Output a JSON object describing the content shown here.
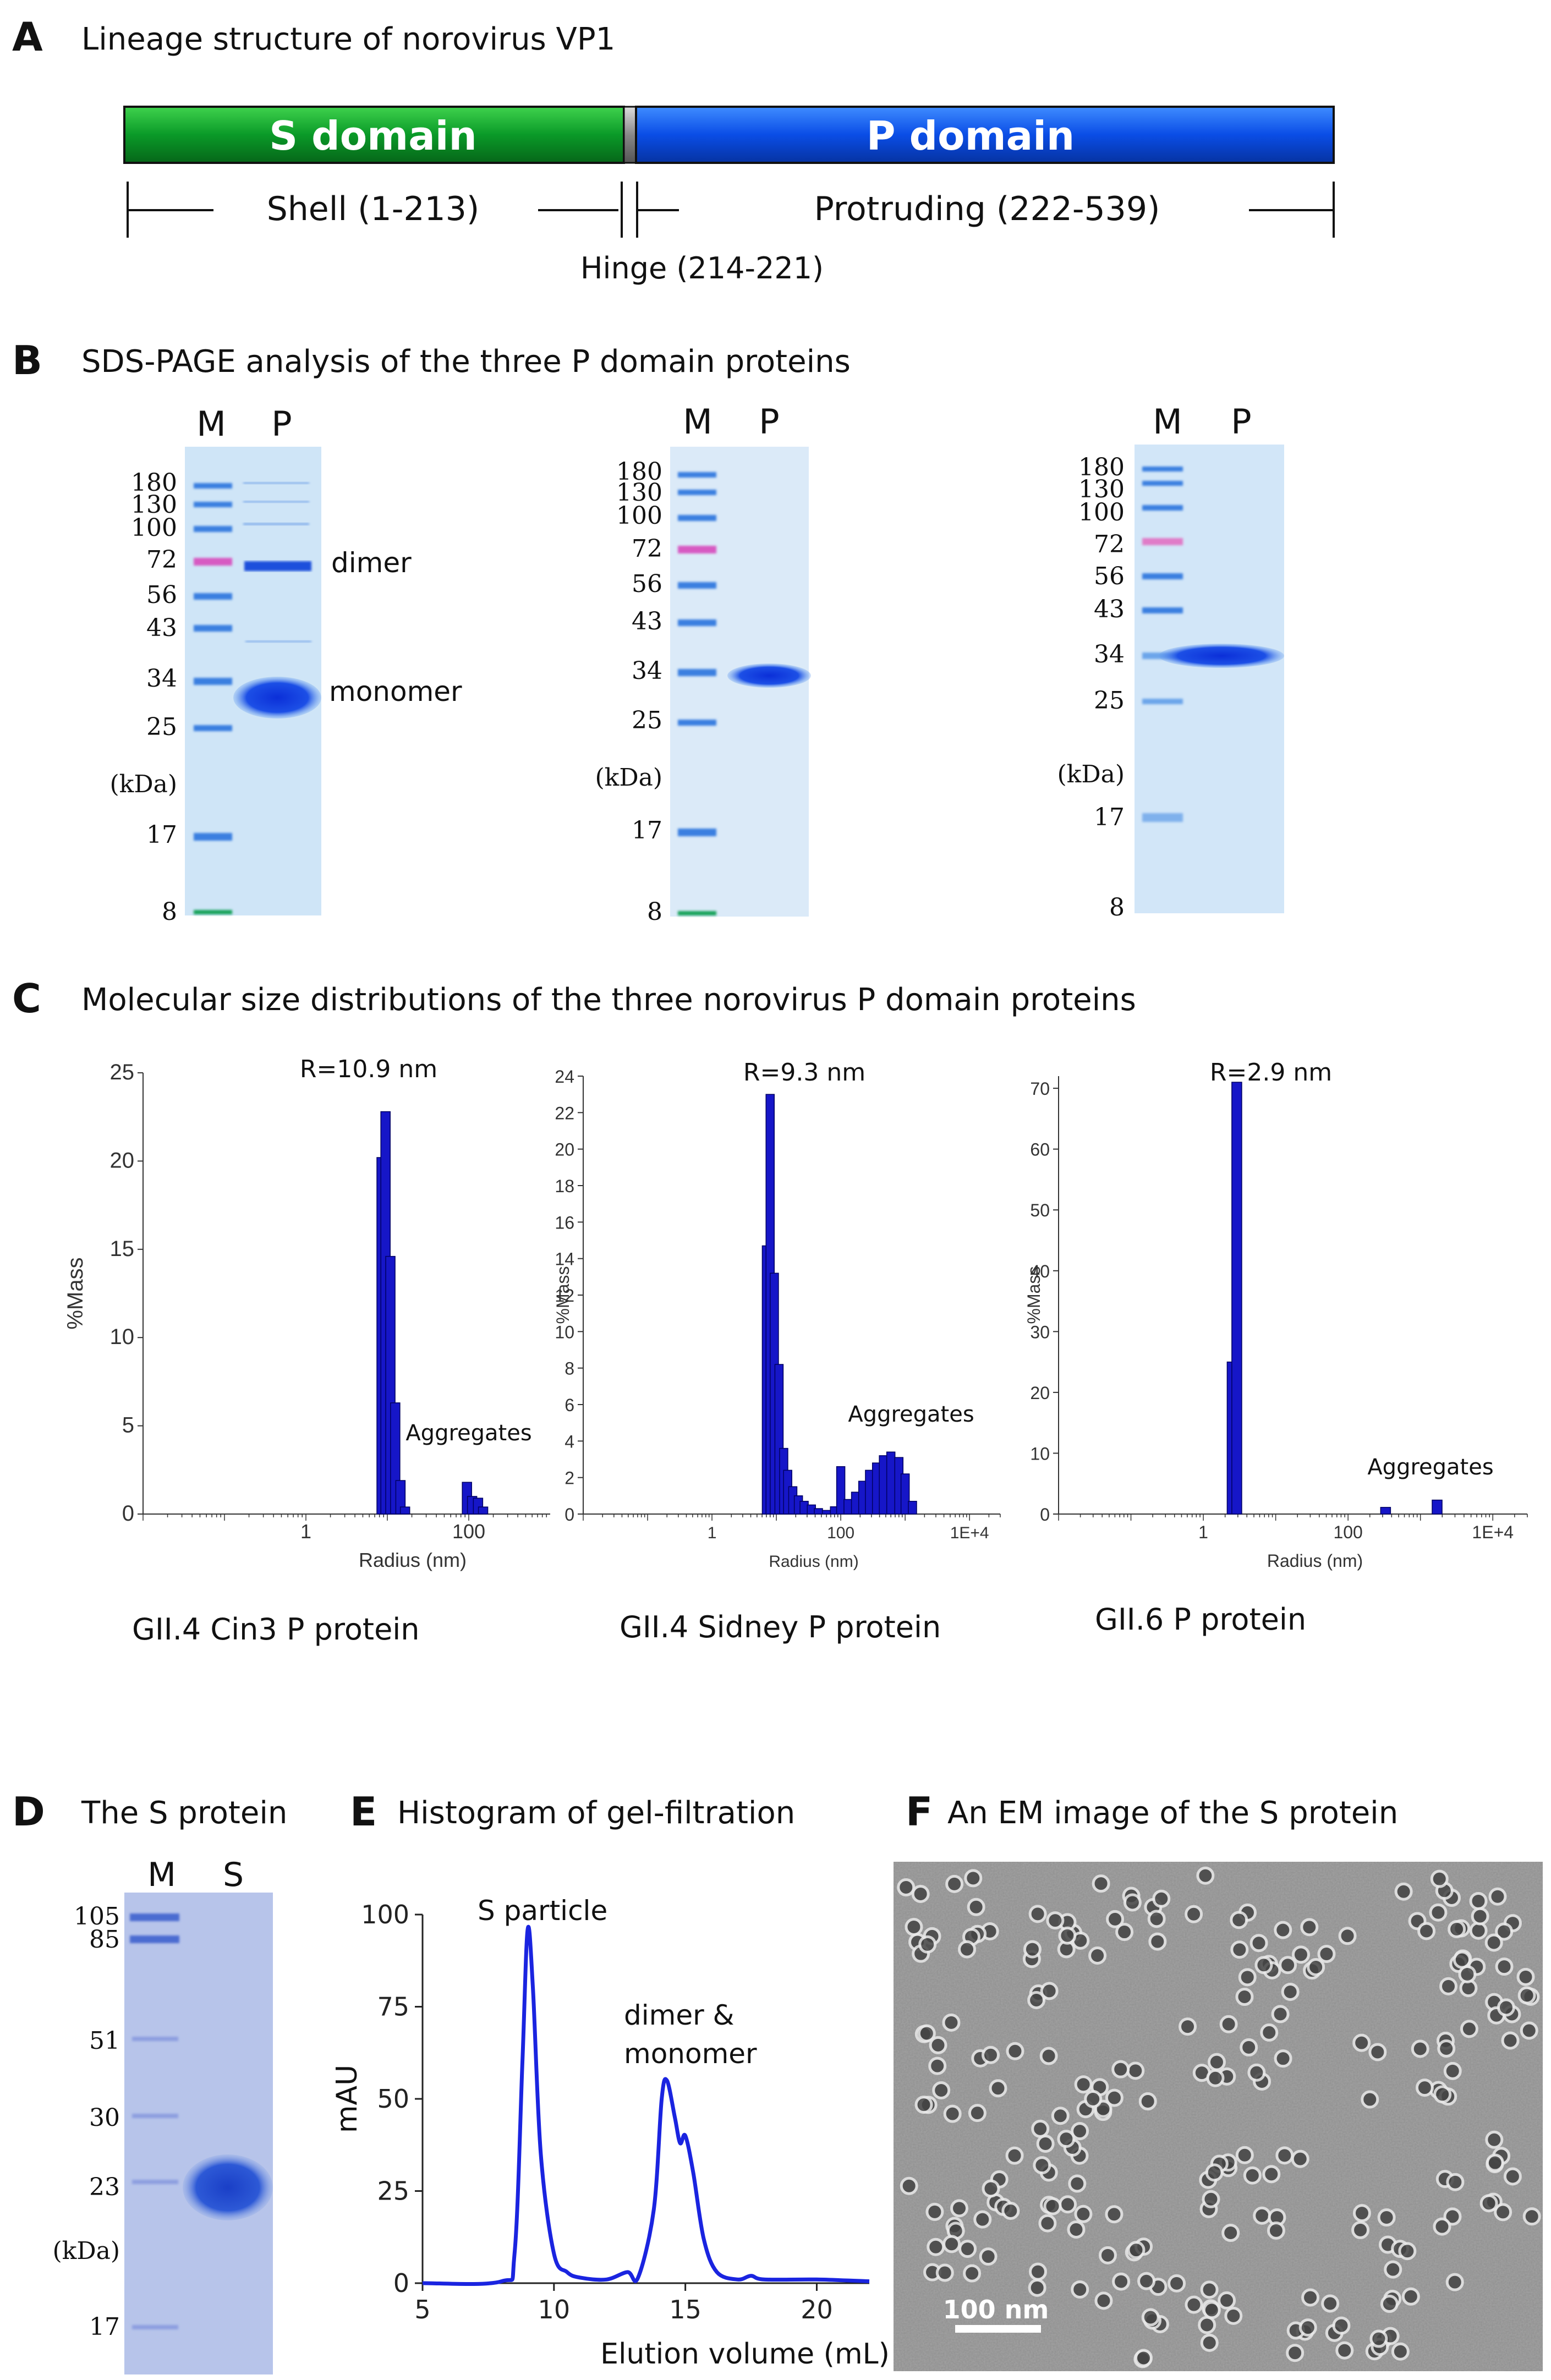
{
  "panelA": {
    "letter": "A",
    "title": "Lineage structure of norovirus VP1",
    "s_domain_label": "S domain",
    "p_domain_label": "P domain",
    "shell_label": "Shell (1-213)",
    "protruding_label": "Protruding (222-539)",
    "hinge_label": "Hinge (214-221)",
    "colors": {
      "s": "#0a9a28",
      "p": "#0a4de6",
      "hinge": "#888888"
    }
  },
  "panelB": {
    "letter": "B",
    "title": "SDS-PAGE analysis of the three P domain proteins",
    "lane_m": "M",
    "lane_p": "P",
    "unit": "(kDa)",
    "gels": [
      {
        "markers": [
          "180",
          "130",
          "100",
          "72",
          "56",
          "43",
          "34",
          "25",
          "17",
          "8"
        ],
        "dimer_label": "dimer",
        "monomer_label": "monomer"
      },
      {
        "markers": [
          "180",
          "130",
          "100",
          "72",
          "56",
          "43",
          "34",
          "25",
          "17",
          "8"
        ]
      },
      {
        "markers": [
          "180",
          "130",
          "100",
          "72",
          "56",
          "43",
          "34",
          "25",
          "17",
          "8"
        ]
      }
    ]
  },
  "panelC": {
    "letter": "C",
    "title": "Molecular size distributions of the three norovirus P domain proteins",
    "aggregates_label": "Aggregates",
    "charts": [
      {
        "annotation": "R=10.9 nm",
        "ylabel": "%Mass",
        "xlabel": "Radius (nm)",
        "yticks": [
          "0",
          "5",
          "10",
          "15",
          "20",
          "25"
        ],
        "xticks": [
          "1",
          "100"
        ],
        "caption": "GII.4 Cin3 P protein"
      },
      {
        "annotation": "R=9.3 nm",
        "ylabel": "%Mass",
        "xlabel": "Radius (nm)",
        "yticks": [
          "0",
          "2",
          "4",
          "6",
          "8",
          "10",
          "12",
          "14",
          "16",
          "18",
          "20",
          "22",
          "24"
        ],
        "xticks": [
          "1",
          "100",
          "1E+4"
        ],
        "caption": "GII.4 Sidney P protein"
      },
      {
        "annotation": "R=2.9 nm",
        "ylabel": "%Mass",
        "xlabel": "Radius (nm)",
        "yticks": [
          "0",
          "10",
          "20",
          "30",
          "40",
          "50",
          "60",
          "70"
        ],
        "xticks": [
          "1",
          "100",
          "1E+4"
        ],
        "caption": "GII.6 P protein"
      }
    ]
  },
  "panelD": {
    "letter": "D",
    "title": "The S protein",
    "lane_m": "M",
    "lane_s": "S",
    "unit": "(kDa)",
    "markers": [
      "105",
      "85",
      "51",
      "30",
      "23",
      "17"
    ]
  },
  "panelE": {
    "letter": "E",
    "title": "Histogram of gel-filtration",
    "s_particle_label": "S particle",
    "dimer_label_1": "dimer &",
    "dimer_label_2": "monomer"
  },
  "panelF": {
    "letter": "F",
    "title": "An EM image of the S protein",
    "scale_label": "100 nm"
  },
  "chart_data": [
    {
      "type": "bar",
      "title": "GII.4 Cin3 P protein",
      "annotation": "R=10.9 nm",
      "xlabel": "Radius (nm)",
      "ylabel": "%Mass",
      "xscale": "log",
      "xlim": [
        0.01,
        1000
      ],
      "ylim": [
        0,
        25
      ],
      "x": [
        8.5,
        9.5,
        10.9,
        12.5,
        14.5,
        16.5,
        95,
        110,
        130,
        150
      ],
      "values": [
        20.2,
        22.8,
        14.6,
        6.3,
        1.9,
        0.4,
        1.8,
        1.0,
        0.9,
        0.4
      ]
    },
    {
      "type": "bar",
      "title": "GII.4 Sidney P protein",
      "annotation": "R=9.3 nm",
      "xlabel": "Radius (nm)",
      "ylabel": "%Mass",
      "xscale": "log",
      "xlim": [
        0.01,
        30000
      ],
      "ylim": [
        0,
        24
      ],
      "x": [
        7,
        8,
        9.3,
        11,
        13,
        15,
        18,
        22,
        27,
        35,
        45,
        60,
        80,
        100,
        130,
        170,
        220,
        280,
        360,
        460,
        600,
        800,
        1000,
        1300
      ],
      "values": [
        14.7,
        23,
        13.2,
        8.2,
        3.6,
        2.4,
        1.5,
        1.0,
        0.7,
        0.5,
        0.3,
        0.2,
        0.4,
        2.6,
        0.8,
        1.2,
        1.8,
        2.4,
        2.8,
        3.2,
        3.4,
        3.1,
        2.2,
        0.7
      ]
    },
    {
      "type": "bar",
      "title": "GII.6 P protein",
      "annotation": "R=2.9 nm",
      "xlabel": "Radius (nm)",
      "ylabel": "%Mass",
      "xscale": "log",
      "xlim": [
        0.01,
        30000
      ],
      "ylim": [
        0,
        72
      ],
      "x": [
        2.5,
        2.9,
        330,
        1700
      ],
      "values": [
        25,
        71,
        1.1,
        2.3
      ]
    },
    {
      "type": "line",
      "title": "Histogram of gel-filtration",
      "xlabel": "Elution volume (mL)",
      "ylabel": "mAU",
      "xlim": [
        5,
        22
      ],
      "ylim": [
        0,
        100
      ],
      "xticks": [
        5,
        10,
        15,
        20
      ],
      "yticks": [
        0,
        25,
        50,
        75,
        100
      ],
      "x": [
        5,
        8,
        8.5,
        8.8,
        9.0,
        9.2,
        9.5,
        10,
        10.5,
        11,
        12,
        12.8,
        13.2,
        13.8,
        14.1,
        14.3,
        14.6,
        14.8,
        15.0,
        15.3,
        15.7,
        16.2,
        17,
        17.5,
        18,
        20,
        22
      ],
      "values": [
        0,
        0.5,
        8,
        60,
        96,
        80,
        35,
        8,
        3,
        1.5,
        1,
        3,
        1.5,
        20,
        50,
        55,
        45,
        38,
        40,
        30,
        12,
        3,
        1,
        2,
        1,
        1,
        0.5
      ]
    }
  ]
}
